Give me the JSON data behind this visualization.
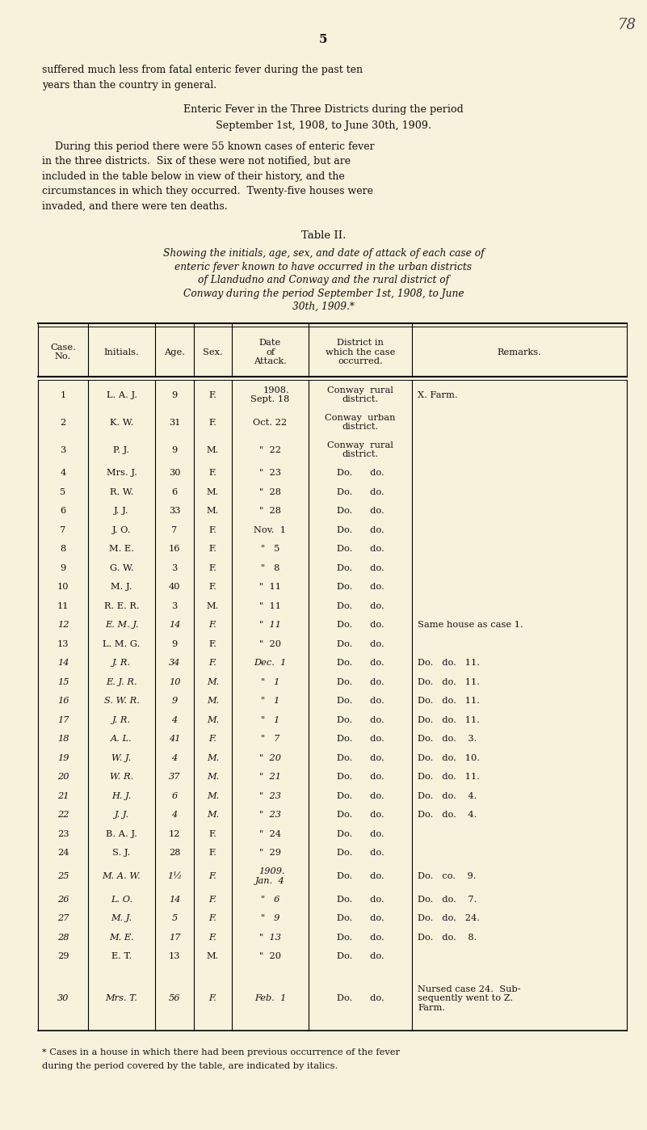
{
  "page_num": "78",
  "page_sub": "5",
  "bg_color": "#f7f2dc",
  "intro_text": [
    "suffered much less from fatal enteric fever during the past ten",
    "years than the country in general."
  ],
  "heading1": "Enteric Fever in the Three Districts during the period",
  "heading2": "September 1st, 1908, to June 30th, 1909.",
  "para_indent": "    During this period there were 55 known cases of enteric fever",
  "para_lines": [
    "    During this period there were 55 known cases of enteric fever",
    "in the three districts.  Six of these were not notified, but are",
    "included in the table below in view of their history, and the",
    "circumstances in which they occurred.  Twenty-five houses were",
    "invaded, and there were ten deaths."
  ],
  "table_title": "Table II.",
  "table_subtitle": [
    "Showing the initials, age, sex, and date of attack of each case of",
    "enteric fever known to have occurred in the urban districts",
    "of Llandudno and Conway and the rural district of",
    "Conway during the period September 1st, 1908, to June",
    "30th, 1909.*"
  ],
  "col_headers": [
    "Case.\nNo.",
    "Initials.",
    "Age.",
    "Sex.",
    "Date\nof\nAttack.",
    "District in\nwhich the case\noccurred.",
    "Remarks."
  ],
  "rows": [
    {
      "no": "1",
      "initials": "L. A. J.",
      "age": "9",
      "sex": "F.",
      "date": "1908.\nSept. 18",
      "district": "Conway  rural\ndistrict.",
      "remarks": "X. Farm.",
      "italic": false
    },
    {
      "no": "2",
      "initials": "K. W.",
      "age": "31",
      "sex": "F.",
      "date": "Oct. 22",
      "district": "Conway  urban\ndistrict.",
      "remarks": "",
      "italic": false
    },
    {
      "no": "3",
      "initials": "P. J.",
      "age": "9",
      "sex": "M.",
      "date": "\"  22",
      "district": "Conway  rural\ndistrict.",
      "remarks": "",
      "italic": false
    },
    {
      "no": "4",
      "initials": "Mrs. J.",
      "age": "30",
      "sex": "F.",
      "date": "\"  23",
      "district": "Do.      do.",
      "remarks": "",
      "italic": false
    },
    {
      "no": "5",
      "initials": "R. W.",
      "age": "6",
      "sex": "M.",
      "date": "\"  28",
      "district": "Do.      do.",
      "remarks": "",
      "italic": false
    },
    {
      "no": "6",
      "initials": "J. J.",
      "age": "33",
      "sex": "M.",
      "date": "\"  28",
      "district": "Do.      do.",
      "remarks": "",
      "italic": false
    },
    {
      "no": "7",
      "initials": "J. O.",
      "age": "7",
      "sex": "F.",
      "date": "Nov.  1",
      "district": "Do.      do.",
      "remarks": "",
      "italic": false
    },
    {
      "no": "8",
      "initials": "M. E.",
      "age": "16",
      "sex": "F.",
      "date": "\"   5",
      "district": "Do.      do.",
      "remarks": "",
      "italic": false
    },
    {
      "no": "9",
      "initials": "G. W.",
      "age": "3",
      "sex": "F.",
      "date": "\"   8",
      "district": "Do.      do.",
      "remarks": "",
      "italic": false
    },
    {
      "no": "10",
      "initials": "M. J.",
      "age": "40",
      "sex": "F.",
      "date": "\"  11",
      "district": "Do.      do.",
      "remarks": "",
      "italic": false
    },
    {
      "no": "11",
      "initials": "R. E. R.",
      "age": "3",
      "sex": "M.",
      "date": "\"  11",
      "district": "Do.      do.",
      "remarks": "",
      "italic": false
    },
    {
      "no": "12",
      "initials": "E. M. J.",
      "age": "14",
      "sex": "F.",
      "date": "\"  11",
      "district": "Do.      do.",
      "remarks": "Same house as case 1.",
      "italic": true
    },
    {
      "no": "13",
      "initials": "L. M. G.",
      "age": "9",
      "sex": "F.",
      "date": "\"  20",
      "district": "Do.      do.",
      "remarks": "",
      "italic": false
    },
    {
      "no": "14",
      "initials": "J. R.",
      "age": "34",
      "sex": "F.",
      "date": "Dec.  1",
      "district": "Do.      do.",
      "remarks": "Do.   do.   11.",
      "italic": true
    },
    {
      "no": "15",
      "initials": "E. J. R.",
      "age": "10",
      "sex": "M.",
      "date": "\"   1",
      "district": "Do.      do.",
      "remarks": "Do.   do.   11.",
      "italic": true
    },
    {
      "no": "16",
      "initials": "S. W. R.",
      "age": "9",
      "sex": "M.",
      "date": "\"   1",
      "district": "Do.      do.",
      "remarks": "Do.   do.   11.",
      "italic": true
    },
    {
      "no": "17",
      "initials": "J. R.",
      "age": "4",
      "sex": "M.",
      "date": "\"   1",
      "district": "Do.      do.",
      "remarks": "Do.   do.   11.",
      "italic": true
    },
    {
      "no": "18",
      "initials": "A. L.",
      "age": "41",
      "sex": "F.",
      "date": "\"   7",
      "district": "Do.      do.",
      "remarks": "Do.   do.    3.",
      "italic": true
    },
    {
      "no": "19",
      "initials": "W. J.",
      "age": "4",
      "sex": "M.",
      "date": "\"  20",
      "district": "Do.      do.",
      "remarks": "Do.   do.   10.",
      "italic": true
    },
    {
      "no": "20",
      "initials": "W. R.",
      "age": "37",
      "sex": "M.",
      "date": "\"  21",
      "district": "Do.      do.",
      "remarks": "Do.   do.   11.",
      "italic": true
    },
    {
      "no": "21",
      "initials": "H. J.",
      "age": "6",
      "sex": "M.",
      "date": "\"  23",
      "district": "Do.      do.",
      "remarks": "Do.   do.    4.",
      "italic": true
    },
    {
      "no": "22",
      "initials": "J. J.",
      "age": "4",
      "sex": "M.",
      "date": "\"  23",
      "district": "Do.      do.",
      "remarks": "Do.   do.    4.",
      "italic": true
    },
    {
      "no": "23",
      "initials": "B. A. J.",
      "age": "12",
      "sex": "F.",
      "date": "\"  24",
      "district": "Do.      do.",
      "remarks": "",
      "italic": false
    },
    {
      "no": "24",
      "initials": "S. J.",
      "age": "28",
      "sex": "F.",
      "date": "\"  29",
      "district": "Do.      do.",
      "remarks": "",
      "italic": false
    },
    {
      "no": "25",
      "initials": "M. A. W.",
      "age": "1½",
      "sex": "F.",
      "date": "1909.\nJan.  4",
      "district": "Do.      do.",
      "remarks": "Do.   co.    9.",
      "italic": true
    },
    {
      "no": "26",
      "initials": "L. O.",
      "age": "14",
      "sex": "F.",
      "date": "\"   6",
      "district": "Do.      do.",
      "remarks": "Do.   do.    7.",
      "italic": true
    },
    {
      "no": "27",
      "initials": "M. J.",
      "age": "5",
      "sex": "F.",
      "date": "\"   9",
      "district": "Do.      do.",
      "remarks": "Do.   do.   24.",
      "italic": true
    },
    {
      "no": "28",
      "initials": "M. E.",
      "age": "17",
      "sex": "F.",
      "date": "\"  13",
      "district": "Do.      do.",
      "remarks": "Do.   do.    8.",
      "italic": true
    },
    {
      "no": "29",
      "initials": "E. T.",
      "age": "13",
      "sex": "M.",
      "date": "\"  20",
      "district": "Do.      do.",
      "remarks": "",
      "italic": false
    },
    {
      "no": "30",
      "initials": "Mrs. T.",
      "age": "56",
      "sex": "F.",
      "date": "Feb.  1",
      "district": "Do.      do.",
      "remarks": "Nursed case 24.  Sub-\nsequently went to Z.\nFarm.",
      "italic": true
    }
  ],
  "footnote": "* Cases in a house in which there had been previous occurrence of the fever\nduring the period covered by the table, are indicated by italics."
}
